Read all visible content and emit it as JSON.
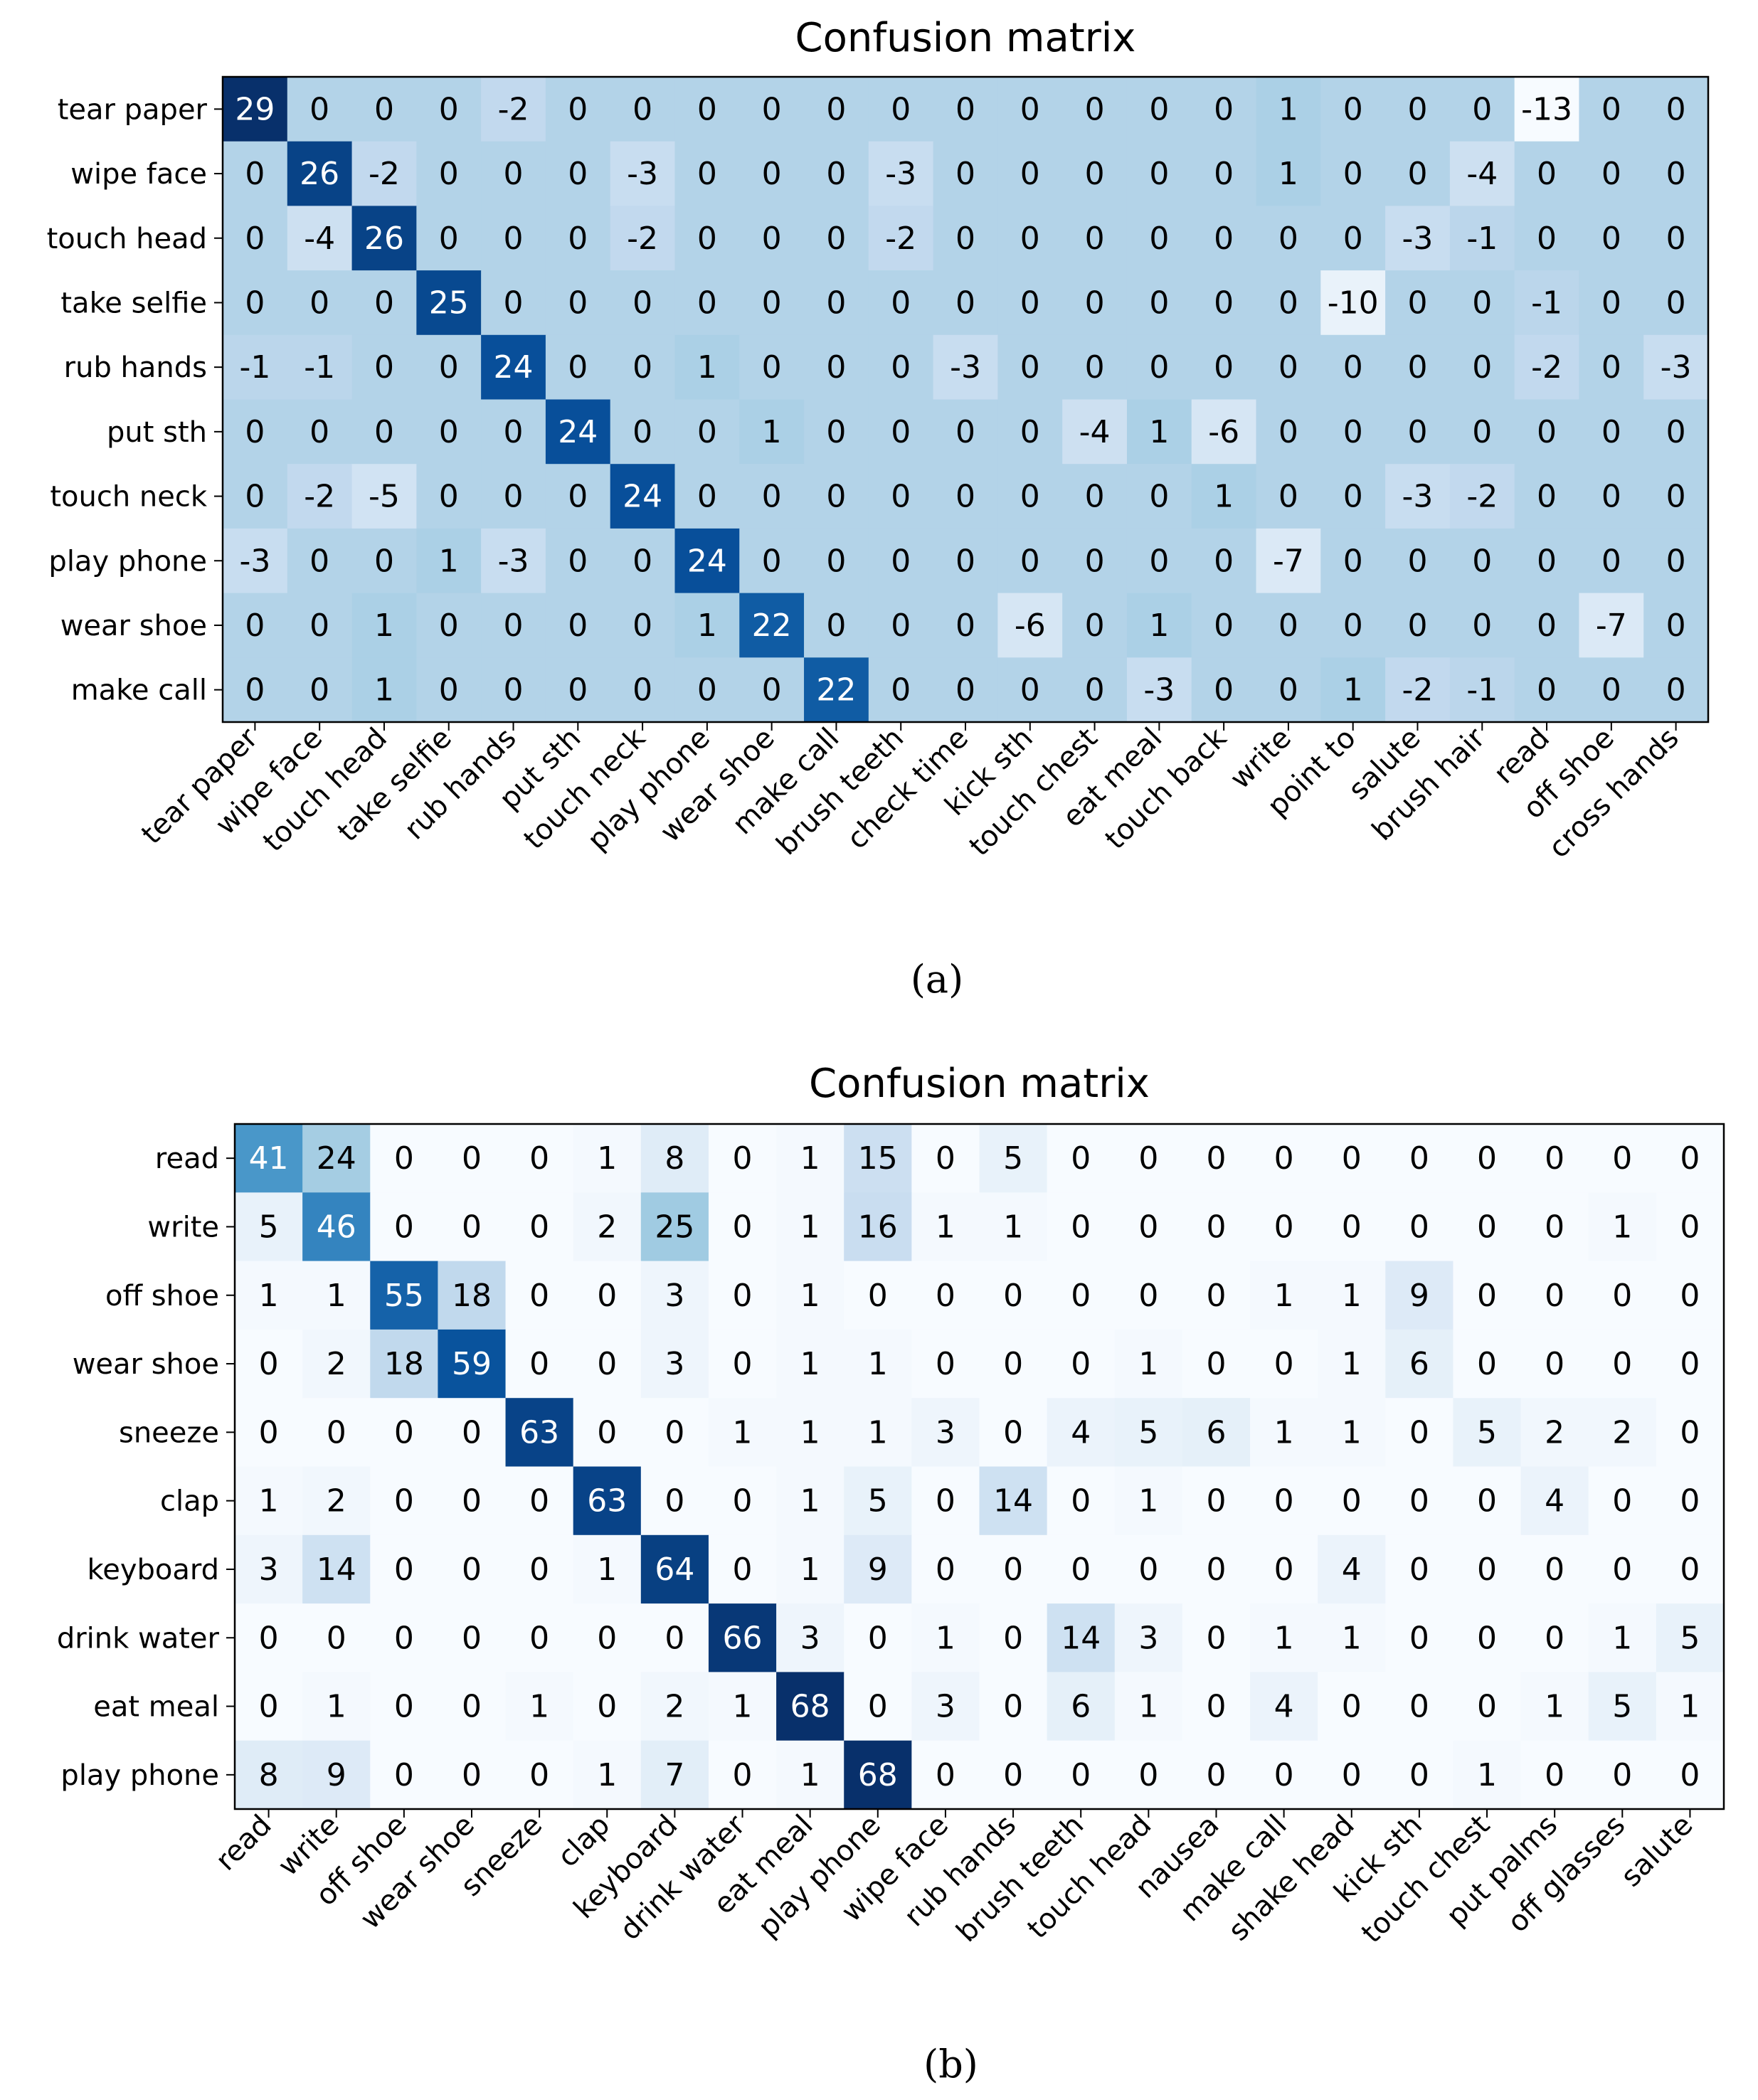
{
  "chart_data": [
    {
      "type": "heatmap",
      "title": "Confusion matrix",
      "caption": "(a)",
      "colormap": "Blues",
      "row_labels": [
        "tear paper",
        "wipe face",
        "touch head",
        "take selfie",
        "rub hands",
        "put sth",
        "touch neck",
        "play phone",
        "wear shoe",
        "make call"
      ],
      "col_labels": [
        "tear paper",
        "wipe face",
        "touch head",
        "take selfie",
        "rub hands",
        "put sth",
        "touch neck",
        "play phone",
        "wear shoe",
        "make call",
        "brush teeth",
        "check time",
        "kick sth",
        "touch chest",
        "eat meal",
        "touch back",
        "write",
        "point to",
        "salute",
        "brush hair",
        "read",
        "off shoe",
        "cross hands"
      ],
      "values": [
        [
          29,
          0,
          0,
          0,
          -2,
          0,
          0,
          0,
          0,
          0,
          0,
          0,
          0,
          0,
          0,
          0,
          1,
          0,
          0,
          0,
          -13,
          0,
          0
        ],
        [
          0,
          26,
          -2,
          0,
          0,
          0,
          -3,
          0,
          0,
          0,
          -3,
          0,
          0,
          0,
          0,
          0,
          1,
          0,
          0,
          -4,
          0,
          0,
          0
        ],
        [
          0,
          -4,
          26,
          0,
          0,
          0,
          -2,
          0,
          0,
          0,
          -2,
          0,
          0,
          0,
          0,
          0,
          0,
          0,
          -3,
          -1,
          0,
          0,
          0
        ],
        [
          0,
          0,
          0,
          25,
          0,
          0,
          0,
          0,
          0,
          0,
          0,
          0,
          0,
          0,
          0,
          0,
          0,
          -10,
          0,
          0,
          -1,
          0,
          0
        ],
        [
          -1,
          -1,
          0,
          0,
          24,
          0,
          0,
          1,
          0,
          0,
          0,
          -3,
          0,
          0,
          0,
          0,
          0,
          0,
          0,
          0,
          -2,
          0,
          -3
        ],
        [
          0,
          0,
          0,
          0,
          0,
          24,
          0,
          0,
          1,
          0,
          0,
          0,
          0,
          -4,
          1,
          -6,
          0,
          0,
          0,
          0,
          0,
          0,
          0
        ],
        [
          0,
          -2,
          -5,
          0,
          0,
          0,
          24,
          0,
          0,
          0,
          0,
          0,
          0,
          0,
          0,
          1,
          0,
          0,
          -3,
          -2,
          0,
          0,
          0
        ],
        [
          -3,
          0,
          0,
          1,
          -3,
          0,
          0,
          24,
          0,
          0,
          0,
          0,
          0,
          0,
          0,
          0,
          -7,
          0,
          0,
          0,
          0,
          0,
          0
        ],
        [
          0,
          0,
          1,
          0,
          0,
          0,
          0,
          1,
          22,
          0,
          0,
          0,
          -6,
          0,
          1,
          0,
          0,
          0,
          0,
          0,
          0,
          -7,
          0
        ],
        [
          0,
          0,
          1,
          0,
          0,
          0,
          0,
          0,
          0,
          22,
          0,
          0,
          0,
          0,
          -3,
          0,
          0,
          1,
          -2,
          -1,
          0,
          0,
          0
        ]
      ]
    },
    {
      "type": "heatmap",
      "title": "Confusion matrix",
      "caption": "(b)",
      "colormap": "Blues",
      "row_labels": [
        "read",
        "write",
        "off shoe",
        "wear shoe",
        "sneeze",
        "clap",
        "keyboard",
        "drink water",
        "eat meal",
        "play phone"
      ],
      "col_labels": [
        "read",
        "write",
        "off shoe",
        "wear shoe",
        "sneeze",
        "clap",
        "keyboard",
        "drink water",
        "eat meal",
        "play phone",
        "wipe face",
        "rub hands",
        "brush teeth",
        "touch head",
        "nausea",
        "make call",
        "shake head",
        "kick sth",
        "touch chest",
        "put palms",
        "off glasses",
        "salute"
      ],
      "values": [
        [
          41,
          24,
          0,
          0,
          0,
          1,
          8,
          0,
          1,
          15,
          0,
          5,
          0,
          0,
          0,
          0,
          0,
          0,
          0,
          0,
          0,
          0
        ],
        [
          5,
          46,
          0,
          0,
          0,
          2,
          25,
          0,
          1,
          16,
          1,
          1,
          0,
          0,
          0,
          0,
          0,
          0,
          0,
          0,
          1,
          0
        ],
        [
          1,
          1,
          55,
          18,
          0,
          0,
          3,
          0,
          1,
          0,
          0,
          0,
          0,
          0,
          0,
          1,
          1,
          9,
          0,
          0,
          0,
          0
        ],
        [
          0,
          2,
          18,
          59,
          0,
          0,
          3,
          0,
          1,
          1,
          0,
          0,
          0,
          1,
          0,
          0,
          1,
          6,
          0,
          0,
          0,
          0
        ],
        [
          0,
          0,
          0,
          0,
          63,
          0,
          0,
          1,
          1,
          1,
          3,
          0,
          4,
          5,
          6,
          1,
          1,
          0,
          5,
          2,
          2,
          0
        ],
        [
          1,
          2,
          0,
          0,
          0,
          63,
          0,
          0,
          1,
          5,
          0,
          14,
          0,
          1,
          0,
          0,
          0,
          0,
          0,
          4,
          0,
          0
        ],
        [
          3,
          14,
          0,
          0,
          0,
          1,
          64,
          0,
          1,
          9,
          0,
          0,
          0,
          0,
          0,
          0,
          4,
          0,
          0,
          0,
          0,
          0
        ],
        [
          0,
          0,
          0,
          0,
          0,
          0,
          0,
          66,
          3,
          0,
          1,
          0,
          14,
          3,
          0,
          1,
          1,
          0,
          0,
          0,
          1,
          5
        ],
        [
          0,
          1,
          0,
          0,
          1,
          0,
          2,
          1,
          68,
          0,
          3,
          0,
          6,
          1,
          0,
          4,
          0,
          0,
          0,
          1,
          5,
          1
        ],
        [
          8,
          9,
          0,
          0,
          0,
          1,
          7,
          0,
          1,
          68,
          0,
          0,
          0,
          0,
          0,
          0,
          0,
          0,
          1,
          0,
          0,
          0
        ]
      ]
    }
  ]
}
